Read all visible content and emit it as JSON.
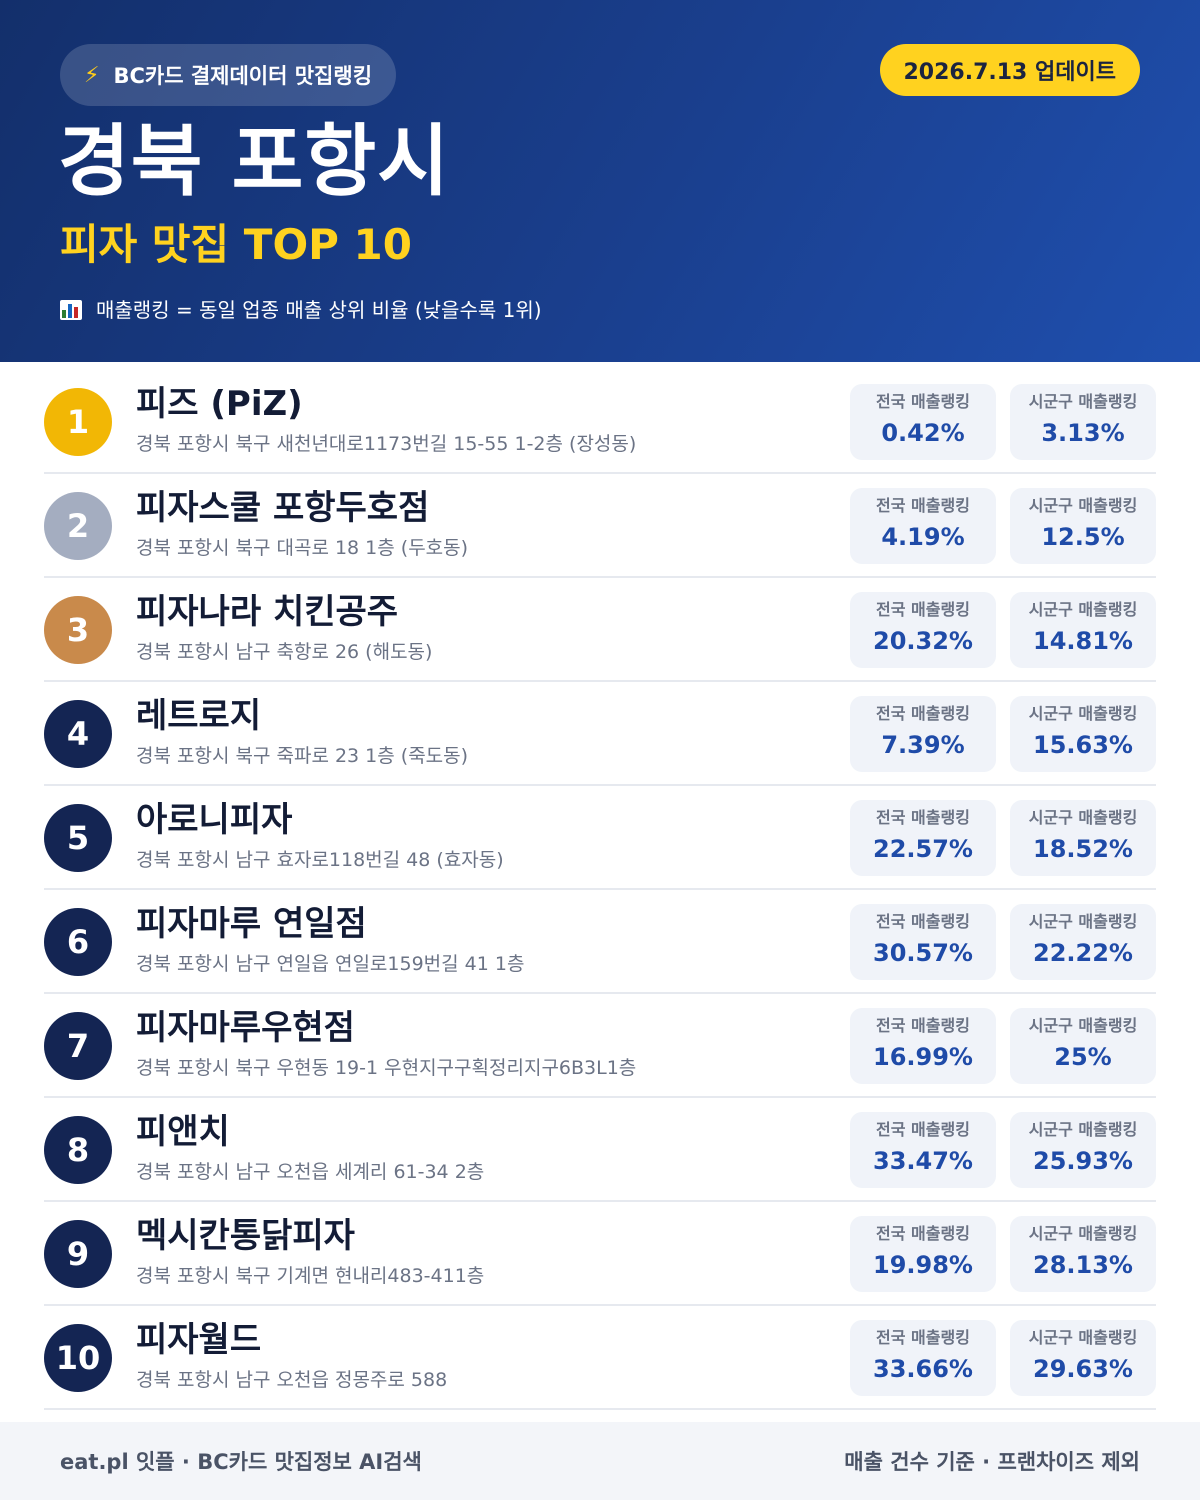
{
  "header": {
    "pill_label": "BC카드 결제데이터 맛집랭킹",
    "update_label": "2026.7.13 업데이트",
    "region": "경북 포항시",
    "subtitle": "피자 맛집 TOP 10",
    "note": "매출랭킹 = 동일 업종 매출 상위 비율 (낮을수록 1위)"
  },
  "labels": {
    "national": "전국 매출랭킹",
    "local": "시군구 매출랭킹"
  },
  "colors": {
    "gold": "#f2b705",
    "silver": "#a4adc0",
    "bronze": "#c98a4b",
    "navy": "#142553",
    "accent": "#ffd21f"
  },
  "restaurants": [
    {
      "rank": "1",
      "name": "피즈 (PiZ)",
      "address": "경북 포항시 북구 새천년대로1173번길 15-55 1-2층 (장성동)",
      "national": "0.42%",
      "local": "3.13%"
    },
    {
      "rank": "2",
      "name": "피자스쿨 포항두호점",
      "address": "경북 포항시 북구 대곡로 18 1층 (두호동)",
      "national": "4.19%",
      "local": "12.5%"
    },
    {
      "rank": "3",
      "name": "피자나라 치킨공주",
      "address": "경북 포항시 남구 축항로 26 (해도동)",
      "national": "20.32%",
      "local": "14.81%"
    },
    {
      "rank": "4",
      "name": "레트로지",
      "address": "경북 포항시 북구 죽파로 23 1층 (죽도동)",
      "national": "7.39%",
      "local": "15.63%"
    },
    {
      "rank": "5",
      "name": "아로니피자",
      "address": "경북 포항시 남구 효자로118번길 48 (효자동)",
      "national": "22.57%",
      "local": "18.52%"
    },
    {
      "rank": "6",
      "name": "피자마루 연일점",
      "address": "경북 포항시 남구 연일읍 연일로159번길 41 1층",
      "national": "30.57%",
      "local": "22.22%"
    },
    {
      "rank": "7",
      "name": "피자마루우현점",
      "address": "경북 포항시 북구 우현동 19-1 우현지구구획정리지구6B3L1층",
      "national": "16.99%",
      "local": "25%"
    },
    {
      "rank": "8",
      "name": "피앤치",
      "address": "경북 포항시 남구 오천읍 세계리 61-34 2층",
      "national": "33.47%",
      "local": "25.93%"
    },
    {
      "rank": "9",
      "name": "멕시칸통닭피자",
      "address": "경북 포항시 북구 기계면 현내리483-411층",
      "national": "19.98%",
      "local": "28.13%"
    },
    {
      "rank": "10",
      "name": "피자월드",
      "address": "경북 포항시 남구 오천읍 정몽주로 588",
      "national": "33.66%",
      "local": "29.63%"
    }
  ],
  "footer": {
    "left": "eat.pl 잇플 · BC카드 맛집정보 AI검색",
    "right": "매출 건수 기준 · 프랜차이즈 제외"
  }
}
